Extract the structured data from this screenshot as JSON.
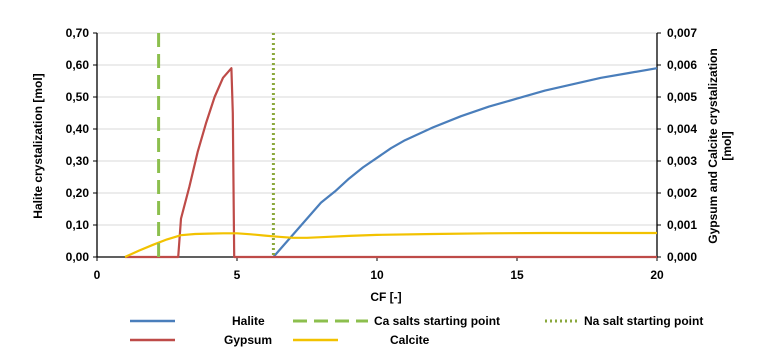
{
  "chart_data": {
    "type": "line",
    "title": "",
    "xlabel": "CF [-]",
    "ylabel": "Halite crystalization  [mol]",
    "y2label_line1": "Gypsum and Calcite  crystalization",
    "y2label_line2": "[mol]",
    "xlim": [
      0,
      20
    ],
    "ylim": [
      0,
      0.7
    ],
    "y2lim": [
      0,
      0.007
    ],
    "grid": true,
    "legend_position": "bottom",
    "xticks": [
      "0",
      "5",
      "10",
      "15",
      "20"
    ],
    "yticks": [
      "0,00",
      "0,10",
      "0,20",
      "0,30",
      "0,40",
      "0,50",
      "0,60",
      "0,70"
    ],
    "y2ticks": [
      "0,000",
      "0,001",
      "0,002",
      "0,003",
      "0,004",
      "0,005",
      "0,006",
      "0,007"
    ],
    "series": [
      {
        "name": "Halite",
        "axis": "left",
        "color": "#4a7ebb",
        "dash": "solid",
        "x": [
          6.3,
          6.6,
          7.0,
          7.5,
          8.0,
          8.5,
          9.0,
          9.5,
          10.0,
          10.5,
          11.0,
          12.0,
          13.0,
          14.0,
          15.0,
          16.0,
          17.0,
          18.0,
          19.0,
          20.0
        ],
        "y": [
          0.0,
          0.03,
          0.07,
          0.12,
          0.17,
          0.205,
          0.245,
          0.28,
          0.31,
          0.34,
          0.365,
          0.405,
          0.44,
          0.47,
          0.495,
          0.52,
          0.54,
          0.56,
          0.575,
          0.59
        ]
      },
      {
        "name": "Gypsum",
        "axis": "right",
        "color": "#be4b48",
        "dash": "solid",
        "x": [
          1.0,
          2.9,
          3.0,
          3.3,
          3.6,
          3.9,
          4.2,
          4.5,
          4.8,
          4.85,
          4.9,
          5.0,
          20.0
        ],
        "y": [
          0.0,
          0.0,
          0.0012,
          0.0022,
          0.0033,
          0.0042,
          0.005,
          0.0056,
          0.0059,
          0.0045,
          0.0,
          0.0,
          0.0
        ]
      },
      {
        "name": "Calcite",
        "axis": "right",
        "color": "#f2c200",
        "dash": "solid",
        "x": [
          1.0,
          1.5,
          2.0,
          2.5,
          3.0,
          3.5,
          4.0,
          4.5,
          5.0,
          5.5,
          6.0,
          6.5,
          7.0,
          7.5,
          8.0,
          9.0,
          10.0,
          12.0,
          14.0,
          16.0,
          18.0,
          20.0
        ],
        "y": [
          0.0,
          0.0002,
          0.00038,
          0.00055,
          0.00068,
          0.00072,
          0.00073,
          0.00074,
          0.00074,
          0.00071,
          0.00067,
          0.00063,
          0.0006,
          0.0006,
          0.00062,
          0.00066,
          0.00069,
          0.00072,
          0.00074,
          0.00075,
          0.00075,
          0.00075
        ]
      },
      {
        "name": "Ca salts starting point",
        "type": "vline",
        "color": "#8cbf4e",
        "dash": "long-dash",
        "x": 2.2
      },
      {
        "name": "Na salt starting point",
        "type": "vline",
        "color": "#8aa83c",
        "dash": "dotted",
        "x": 6.3
      }
    ]
  }
}
